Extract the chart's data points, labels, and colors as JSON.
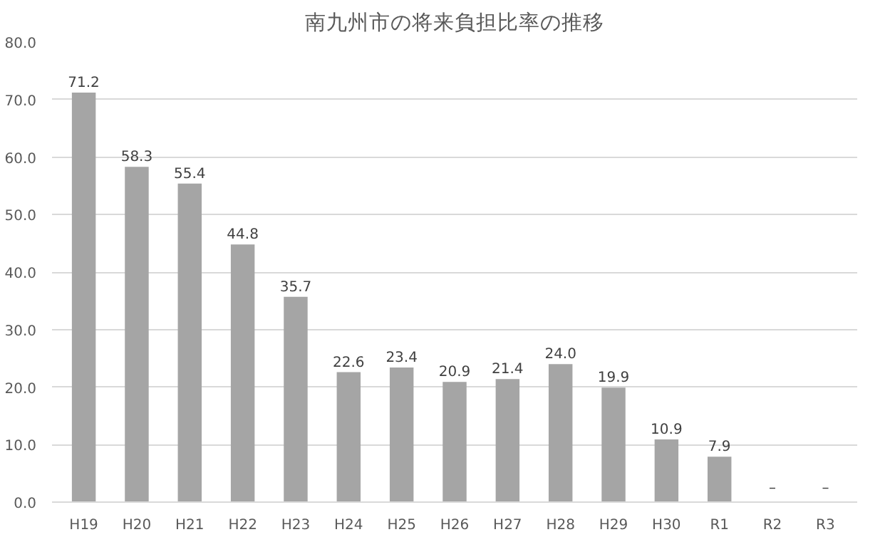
{
  "chart_data": {
    "type": "bar",
    "title": "南九州市の将来負担比率の推移",
    "categories": [
      "H19",
      "H20",
      "H21",
      "H22",
      "H23",
      "H24",
      "H25",
      "H26",
      "H27",
      "H28",
      "H29",
      "H30",
      "R1",
      "R2",
      "R3"
    ],
    "values": [
      71.2,
      58.3,
      55.4,
      44.8,
      35.7,
      22.6,
      23.4,
      20.9,
      21.4,
      24.0,
      19.9,
      10.9,
      7.9,
      0,
      0
    ],
    "value_labels": [
      "71.2",
      "58.3",
      "55.4",
      "44.8",
      "35.7",
      "22.6",
      "23.4",
      "20.9",
      "21.4",
      "24.0",
      "19.9",
      "10.9",
      "7.9",
      "–",
      "–"
    ],
    "color": "#a5a5a5",
    "ylim": [
      0,
      80
    ],
    "yticks": [
      {
        "value": 0,
        "label": "0.0"
      },
      {
        "value": 10,
        "label": "10.0"
      },
      {
        "value": 20,
        "label": "20.0"
      },
      {
        "value": 30,
        "label": "30.0"
      },
      {
        "value": 40,
        "label": "40.0"
      },
      {
        "value": 50,
        "label": "50.0"
      },
      {
        "value": 60,
        "label": "60.0"
      },
      {
        "value": 70,
        "label": "70.0"
      },
      {
        "value": 80,
        "label": "80.0"
      }
    ],
    "grid": "y"
  }
}
